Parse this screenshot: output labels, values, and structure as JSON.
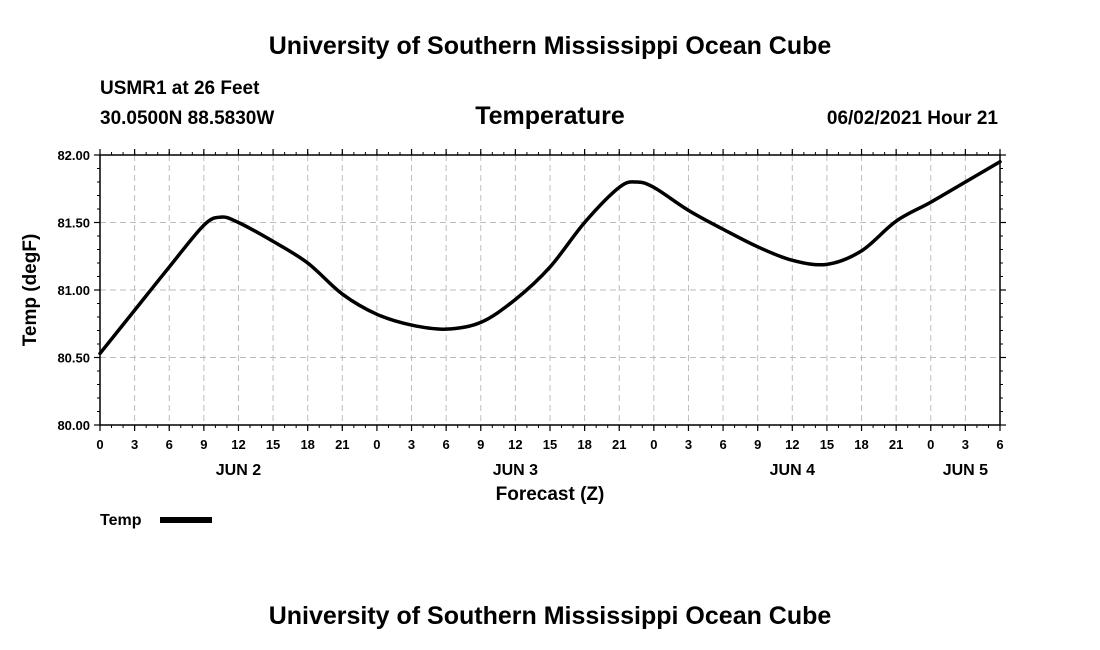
{
  "header": {
    "title": "University of Southern Mississippi Ocean Cube",
    "station": "USMR1 at 26 Feet",
    "coords": "30.0500N  88.5830W",
    "variable": "Temperature",
    "datetime": "06/02/2021 Hour 21"
  },
  "footer": {
    "title": "University of Southern Mississippi Ocean Cube"
  },
  "chart_data": {
    "type": "line",
    "title": "Temperature",
    "xlabel": "Forecast (Z)",
    "ylabel": "Temp (degF)",
    "xlim": [
      0,
      78
    ],
    "ylim": [
      80.0,
      82.0
    ],
    "grid": true,
    "y_ticks": [
      "80.00",
      "80.50",
      "81.00",
      "81.50",
      "82.00"
    ],
    "x_tick_labels": [
      "0",
      "3",
      "6",
      "9",
      "12",
      "15",
      "18",
      "21",
      "0",
      "3",
      "6",
      "9",
      "12",
      "15",
      "18",
      "21",
      "0",
      "3",
      "6",
      "9",
      "12",
      "15",
      "18",
      "21",
      "0",
      "3",
      "6"
    ],
    "date_labels": [
      {
        "label": "JUN 2",
        "hour": 12
      },
      {
        "label": "JUN 3",
        "hour": 36
      },
      {
        "label": "JUN 4",
        "hour": 60
      },
      {
        "label": "JUN 5",
        "hour": 75
      }
    ],
    "legend": "top-left below axis",
    "series": [
      {
        "name": "Temp",
        "color": "#000000",
        "x": [
          0,
          3,
          6,
          9,
          10.5,
          12,
          15,
          18,
          21,
          24,
          27,
          30,
          33,
          36,
          39,
          42,
          45,
          46.5,
          48,
          51,
          54,
          57,
          60,
          63,
          66,
          69,
          72,
          75,
          78
        ],
        "values": [
          80.53,
          80.85,
          81.17,
          81.48,
          81.54,
          81.5,
          81.36,
          81.2,
          80.97,
          80.82,
          80.74,
          80.71,
          80.76,
          80.93,
          81.17,
          81.5,
          81.76,
          81.8,
          81.76,
          81.59,
          81.45,
          81.32,
          81.22,
          81.19,
          81.29,
          81.51,
          81.65,
          81.8,
          81.95
        ]
      }
    ]
  }
}
